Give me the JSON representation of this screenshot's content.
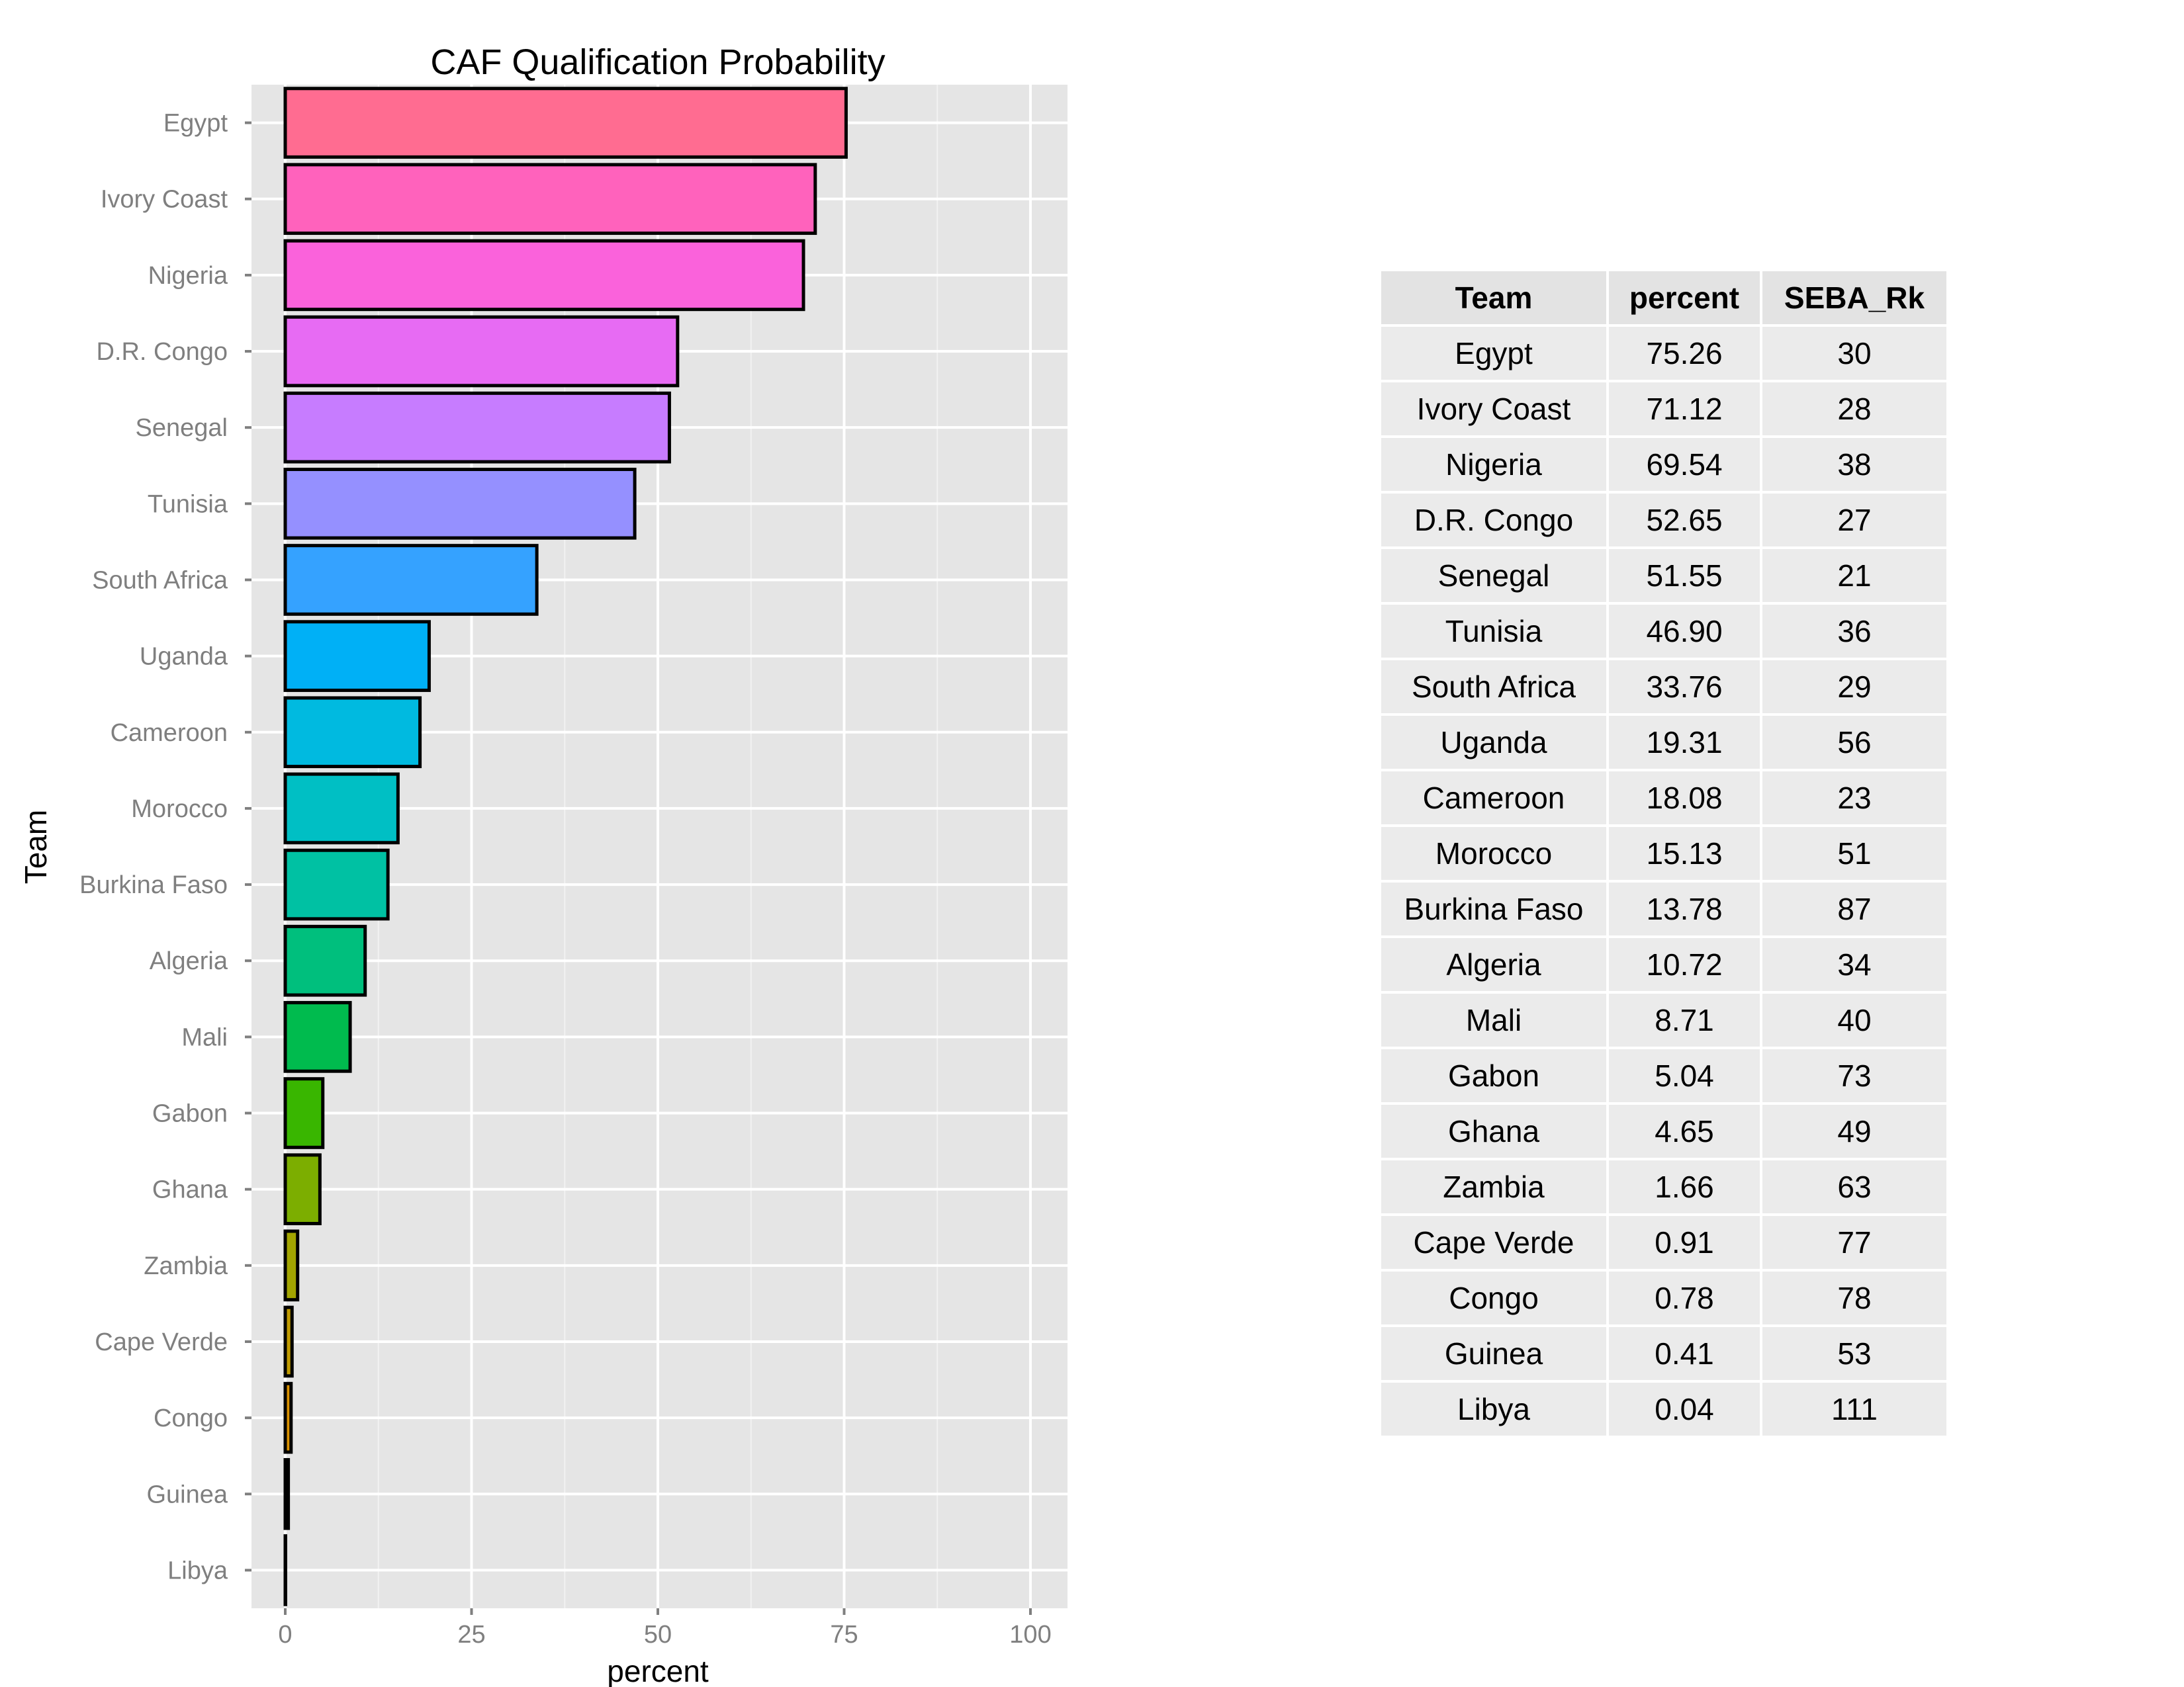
{
  "chart_data": {
    "type": "bar",
    "orientation": "horizontal",
    "title": "CAF Qualification Probability",
    "xlabel": "percent",
    "ylabel": "Team",
    "xlim": [
      0,
      100
    ],
    "xticks": [
      "0",
      "25",
      "50",
      "75",
      "100"
    ],
    "xtick_values": [
      0,
      25,
      50,
      75,
      100
    ],
    "grid": true,
    "categories": [
      "Egypt",
      "Ivory Coast",
      "Nigeria",
      "D.R. Congo",
      "Senegal",
      "Tunisia",
      "South Africa",
      "Uganda",
      "Cameroon",
      "Morocco",
      "Burkina Faso",
      "Algeria",
      "Mali",
      "Gabon",
      "Ghana",
      "Zambia",
      "Cape Verde",
      "Congo",
      "Guinea",
      "Libya"
    ],
    "values": [
      75.26,
      71.12,
      69.54,
      52.65,
      51.55,
      46.9,
      33.76,
      19.31,
      18.08,
      15.13,
      13.78,
      10.72,
      8.71,
      5.04,
      4.65,
      1.66,
      0.91,
      0.78,
      0.41,
      0.04
    ],
    "colors": [
      "#FF6C91",
      "#FF62BC",
      "#FA62DB",
      "#E76BF3",
      "#C77CFF",
      "#9590FF",
      "#35A2FF",
      "#00B0F6",
      "#00BAE0",
      "#00BFC4",
      "#00C1A3",
      "#00BF7D",
      "#00BB4E",
      "#39B600",
      "#7CAE00",
      "#A3A500",
      "#C09B00",
      "#D89000",
      "#EA8331",
      "#F8766D"
    ],
    "panel_background": "#E5E5E5",
    "legend": "none"
  },
  "table": {
    "headers": [
      "Team",
      "percent",
      "SEBA_Rk"
    ],
    "rows": [
      [
        "Egypt",
        "75.26",
        "30"
      ],
      [
        "Ivory Coast",
        "71.12",
        "28"
      ],
      [
        "Nigeria",
        "69.54",
        "38"
      ],
      [
        "D.R. Congo",
        "52.65",
        "27"
      ],
      [
        "Senegal",
        "51.55",
        "21"
      ],
      [
        "Tunisia",
        "46.90",
        "36"
      ],
      [
        "South Africa",
        "33.76",
        "29"
      ],
      [
        "Uganda",
        "19.31",
        "56"
      ],
      [
        "Cameroon",
        "18.08",
        "23"
      ],
      [
        "Morocco",
        "15.13",
        "51"
      ],
      [
        "Burkina Faso",
        "13.78",
        "87"
      ],
      [
        "Algeria",
        "10.72",
        "34"
      ],
      [
        "Mali",
        "8.71",
        "40"
      ],
      [
        "Gabon",
        "5.04",
        "73"
      ],
      [
        "Ghana",
        "4.65",
        "49"
      ],
      [
        "Zambia",
        "1.66",
        "63"
      ],
      [
        "Cape Verde",
        "0.91",
        "77"
      ],
      [
        "Congo",
        "0.78",
        "78"
      ],
      [
        "Guinea",
        "0.41",
        "53"
      ],
      [
        "Libya",
        "0.04",
        "111"
      ]
    ]
  }
}
